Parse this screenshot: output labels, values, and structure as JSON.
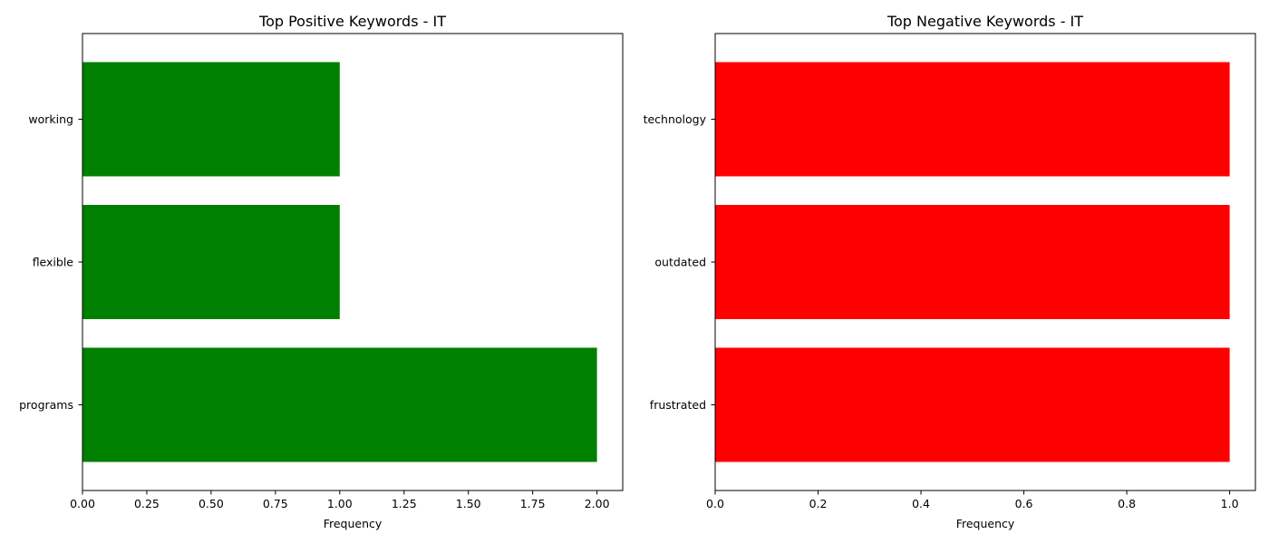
{
  "chart_data": [
    {
      "type": "bar",
      "orientation": "horizontal",
      "title": "Top Positive Keywords - IT",
      "xlabel": "Frequency",
      "ylabel": "",
      "categories": [
        "programs",
        "flexible",
        "working"
      ],
      "values": [
        2,
        1,
        1
      ],
      "xlim": [
        0,
        2.1
      ],
      "xticks": [
        0,
        0.25,
        0.5,
        0.75,
        1.0,
        1.25,
        1.5,
        1.75,
        2.0
      ],
      "xtick_labels": [
        "0.00",
        "0.25",
        "0.50",
        "0.75",
        "1.00",
        "1.25",
        "1.50",
        "1.75",
        "2.00"
      ],
      "color": "#008000",
      "grid": false
    },
    {
      "type": "bar",
      "orientation": "horizontal",
      "title": "Top Negative Keywords - IT",
      "xlabel": "Frequency",
      "ylabel": "",
      "categories": [
        "frustrated",
        "outdated",
        "technology"
      ],
      "values": [
        1,
        1,
        1
      ],
      "xlim": [
        0,
        1.05
      ],
      "xticks": [
        0,
        0.2,
        0.4,
        0.6,
        0.8,
        1.0
      ],
      "xtick_labels": [
        "0.0",
        "0.2",
        "0.4",
        "0.6",
        "0.8",
        "1.0"
      ],
      "color": "#ff0000",
      "grid": false
    }
  ]
}
